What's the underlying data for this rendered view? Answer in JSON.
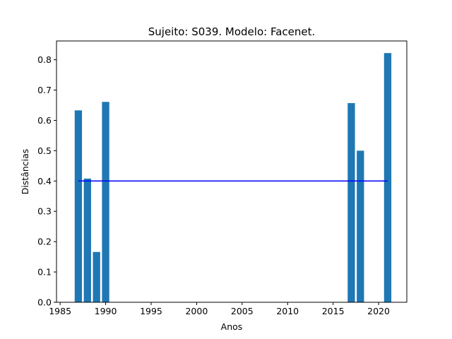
{
  "chart_data": {
    "type": "bar",
    "title": "Sujeito: S039. Modelo: Facenet.",
    "xlabel": "Anos",
    "ylabel": "Distâncias",
    "x": [
      1987,
      1988,
      1989,
      1990,
      2017,
      2018,
      2021
    ],
    "values": [
      0.633,
      0.408,
      0.166,
      0.661,
      0.657,
      0.5,
      0.822
    ],
    "bar_color": "#1f77b4",
    "xlim": [
      1984.6,
      2023.1
    ],
    "ylim": [
      0.0,
      0.862
    ],
    "xticks": [
      1985,
      1990,
      1995,
      2000,
      2005,
      2010,
      2015,
      2020
    ],
    "xtick_labels": [
      "1985",
      "1990",
      "1995",
      "2000",
      "2005",
      "2010",
      "2015",
      "2020"
    ],
    "yticks": [
      0.0,
      0.1,
      0.2,
      0.3,
      0.4,
      0.5,
      0.6,
      0.7,
      0.8
    ],
    "ytick_labels": [
      "0.0",
      "0.1",
      "0.2",
      "0.3",
      "0.4",
      "0.5",
      "0.6",
      "0.7",
      "0.8"
    ],
    "threshold": {
      "value": 0.4,
      "x_start": 1987,
      "x_end": 2021,
      "color": "#0000ff"
    },
    "grid": false,
    "legend": "none"
  }
}
